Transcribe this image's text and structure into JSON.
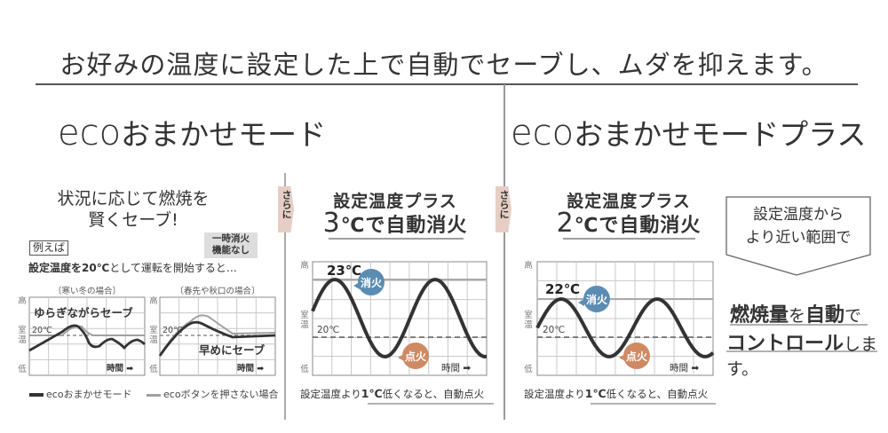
{
  "title": "お好みの温度に設定した上で自動でセーブし、ムダを抑えます。",
  "modes": {
    "left": {
      "eco": "eco",
      "name": "おまかせモード"
    },
    "right": {
      "eco": "eco",
      "name": "おまかせモードプラス"
    }
  },
  "left": {
    "lead_line1": "状況に応じて燃焼を",
    "lead_line2": "賢くセーブ!",
    "example": "例えば",
    "no_function_line1": "一時消火",
    "no_function_line2": "機能なし",
    "condition_bold": "設定温度を20℃",
    "condition_rest": "として運転を開始すると…",
    "charts": [
      {
        "case": "〔寒い冬の場合〕",
        "label": "ゆらぎながらセーブ",
        "temp": "20℃",
        "time": "時間 ➡"
      },
      {
        "case": "〔春先や秋口の場合〕",
        "label": "早めにセーブ",
        "temp": "20℃",
        "time": "時間 ➡"
      }
    ],
    "y_labels": {
      "high": "高",
      "room1": "室",
      "room2": "温",
      "low": "低"
    },
    "legend": [
      {
        "label": "ecoおまかせモード",
        "color": "#333333"
      },
      {
        "label": "ecoボタンを押さない場合",
        "color": "#a0a0a0"
      }
    ]
  },
  "sarani": "さらに",
  "middle": {
    "heading1": "設定温度プラス",
    "heading_num": "3",
    "heading_rest": "℃で自動消火",
    "peak_temp": "23℃",
    "set_temp": "20℃",
    "off_badge": "消火",
    "on_badge": "点火",
    "time": "時間 ➡",
    "caption_a": "設定温度より",
    "caption_b": "1℃",
    "caption_c": "低くなると、自動点火"
  },
  "right": {
    "heading1": "設定温度プラス",
    "heading_num": "2",
    "heading_rest": "℃で自動消火",
    "peak_temp": "22℃",
    "set_temp": "20℃",
    "off_badge": "消火",
    "on_badge": "点火",
    "time": "時間 ➡",
    "caption_a": "設定温度より",
    "caption_b": "1℃",
    "caption_c": "低くなると、自動点火",
    "callout_line1": "設定温度から",
    "callout_line2": "より近い範囲で",
    "control_b1": "燃焼量",
    "control_t1": "を",
    "control_b2": "自動",
    "control_t2": "で",
    "control_b3": "コントロール",
    "control_t3": "します。"
  },
  "colors": {
    "off_badge": "#5b8db3",
    "on_badge": "#cf8a63",
    "sarani_tab": "#e7cec5"
  }
}
